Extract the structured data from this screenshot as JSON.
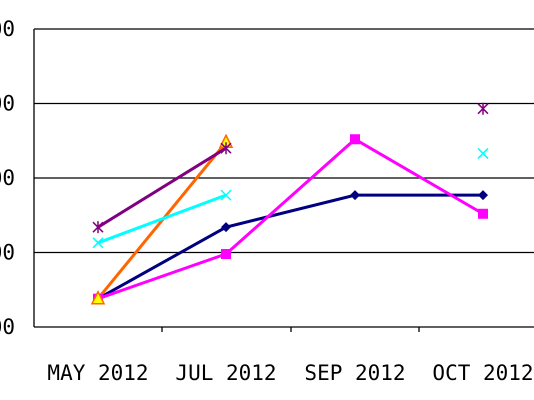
{
  "chart_data": {
    "type": "line",
    "categories": [
      "MAY 2012",
      "JUL 2012",
      "SEP 2012",
      "OCT 2012"
    ],
    "y_tick_labels": [
      "00",
      "00",
      "00",
      "00",
      "00"
    ],
    "ylim": [
      0,
      4
    ],
    "grid": true,
    "legend": "none",
    "series": [
      {
        "color": "#000080",
        "marker": "diamond",
        "values": [
          0.38,
          1.34,
          1.77,
          1.77
        ]
      },
      {
        "color": "#FF00FF",
        "marker": "square",
        "values": [
          0.38,
          0.98,
          2.52,
          1.52
        ]
      },
      {
        "color": "#FF6600",
        "marker": "triangle",
        "values": [
          0.38,
          2.48,
          null,
          null
        ]
      },
      {
        "color": "#00FFFF",
        "marker": "x",
        "values": [
          1.13,
          1.77,
          null,
          2.33
        ]
      },
      {
        "color": "#800080",
        "marker": "star",
        "values": [
          1.34,
          2.4,
          null,
          2.93
        ]
      }
    ]
  }
}
